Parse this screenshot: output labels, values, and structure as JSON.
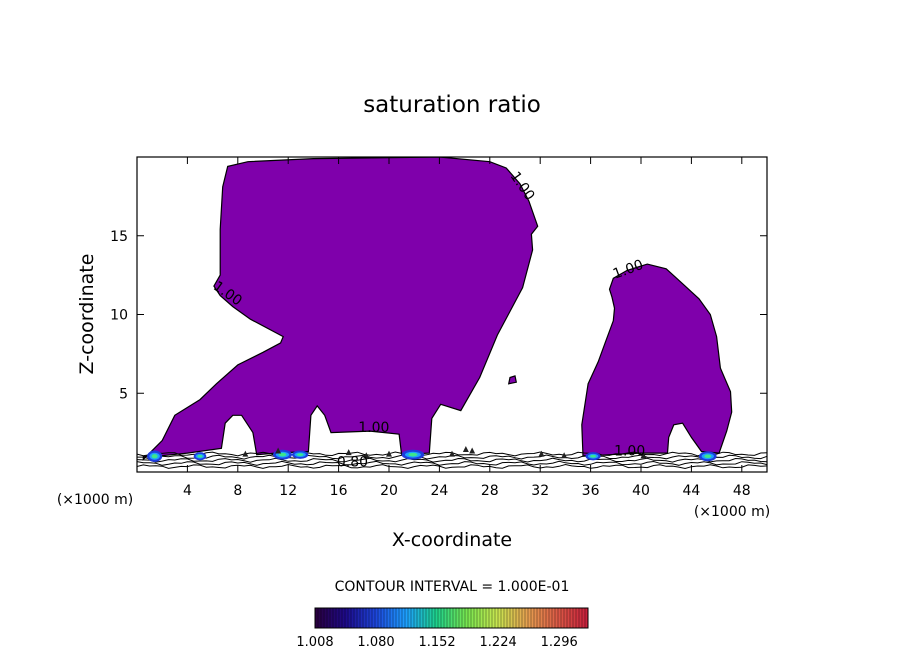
{
  "chart_data": {
    "type": "contour",
    "title": "saturation ratio",
    "xlabel": "X-coordinate",
    "ylabel": "Z-coordinate",
    "x_unit_left": "(×1000 m)",
    "x_unit_right": "(×1000 m)",
    "xlim": [
      0,
      50
    ],
    "ylim": [
      0,
      20
    ],
    "x_ticks": [
      4,
      8,
      12,
      16,
      20,
      24,
      28,
      32,
      36,
      40,
      44,
      48
    ],
    "y_ticks": [
      5,
      10,
      15
    ],
    "fill_color": "#7f00ab",
    "contour_interval_label": "CONTOUR INTERVAL = 1.000E-01",
    "contour_labels": [
      {
        "text": "1.00",
        "x": 30.3,
        "y": 18.0,
        "rotate": 55
      },
      {
        "text": "1.00",
        "x": 7.0,
        "y": 11.1,
        "rotate": 35
      },
      {
        "text": "1.00",
        "x": 39.1,
        "y": 12.6,
        "rotate": -20
      },
      {
        "text": "1.00",
        "x": 18.8,
        "y": 2.55,
        "rotate": 0
      },
      {
        "text": "1.00",
        "x": 39.1,
        "y": 1.05,
        "rotate": 0
      },
      {
        "text": "0.80",
        "x": 17.1,
        "y": 0.35,
        "rotate": 0
      }
    ],
    "colorbar": {
      "min": 1.008,
      "max": 1.33,
      "tick_labels": [
        "1.008",
        "1.080",
        "1.152",
        "1.224",
        "1.296"
      ],
      "colors": [
        "#2a003d",
        "#1e0a8a",
        "#1e46dc",
        "#1ea0ff",
        "#1ed28c",
        "#78e650",
        "#c8e650",
        "#e6a050",
        "#dc5a46",
        "#c81e3c"
      ]
    },
    "regions": {
      "main_cloud": [
        [
          0.5,
          0.8
        ],
        [
          2,
          2
        ],
        [
          3,
          3.6
        ],
        [
          5,
          4.6
        ],
        [
          6.3,
          5.6
        ],
        [
          8,
          6.8
        ],
        [
          10,
          7.6
        ],
        [
          11.4,
          8.2
        ],
        [
          11.6,
          8.6
        ],
        [
          9,
          9.7
        ],
        [
          7.6,
          10.5
        ],
        [
          6.6,
          11.2
        ],
        [
          6.1,
          11.8
        ],
        [
          6.6,
          12.5
        ],
        [
          6.6,
          15.4
        ],
        [
          6.8,
          18.1
        ],
        [
          7.2,
          19.4
        ],
        [
          8.8,
          19.7
        ],
        [
          14,
          19.9
        ],
        [
          24,
          20
        ],
        [
          28,
          19.7
        ],
        [
          29.3,
          19.3
        ],
        [
          30.4,
          18.3
        ],
        [
          31.1,
          17.2
        ],
        [
          31.8,
          15.6
        ],
        [
          31.3,
          15.1
        ],
        [
          31.4,
          14.1
        ],
        [
          30.6,
          11.7
        ],
        [
          28.6,
          8.7
        ],
        [
          27.2,
          6
        ],
        [
          25.7,
          3.9
        ],
        [
          24.1,
          4.3
        ],
        [
          23.4,
          3.4
        ],
        [
          23.2,
          1.2
        ],
        [
          21,
          1.1
        ],
        [
          20.8,
          2.4
        ],
        [
          18.5,
          2.6
        ],
        [
          15.4,
          2.5
        ],
        [
          14.9,
          3.6
        ],
        [
          14.3,
          4.2
        ],
        [
          13.8,
          3.6
        ],
        [
          13.6,
          1.3
        ],
        [
          11,
          1.2
        ],
        [
          9.5,
          1.1
        ],
        [
          9.2,
          2.5
        ],
        [
          8.3,
          3.6
        ],
        [
          7.6,
          3.6
        ],
        [
          7,
          3.1
        ],
        [
          6.7,
          1.5
        ],
        [
          4,
          1.2
        ],
        [
          1.5,
          1
        ],
        [
          0.5,
          1
        ]
      ],
      "right_cloud": [
        [
          35.4,
          1
        ],
        [
          35.3,
          3
        ],
        [
          35.8,
          5.6
        ],
        [
          36.6,
          7
        ],
        [
          37.2,
          8.3
        ],
        [
          37.8,
          9.6
        ],
        [
          37.9,
          10.4
        ],
        [
          37.7,
          11.1
        ],
        [
          37.5,
          11.6
        ],
        [
          37.8,
          12.3
        ],
        [
          38.9,
          12.8
        ],
        [
          40.5,
          13.2
        ],
        [
          42,
          12.9
        ],
        [
          43.1,
          12.1
        ],
        [
          44.6,
          11
        ],
        [
          45.5,
          10
        ],
        [
          46,
          8.6
        ],
        [
          46.3,
          6.6
        ],
        [
          47.1,
          5.1
        ],
        [
          47.2,
          3.8
        ],
        [
          46.8,
          2.6
        ],
        [
          46.2,
          1.2
        ],
        [
          44.8,
          1.3
        ],
        [
          44,
          2.2
        ],
        [
          43.3,
          3.1
        ],
        [
          42.6,
          3
        ],
        [
          42.2,
          2.2
        ],
        [
          42.1,
          1.2
        ],
        [
          40,
          1.2
        ],
        [
          37.5,
          1.1
        ]
      ],
      "speck": [
        [
          29.5,
          5.6
        ],
        [
          30.1,
          5.7
        ],
        [
          30.0,
          6.1
        ],
        [
          29.6,
          6.0
        ]
      ]
    },
    "surface_lines_y": [
      0.35,
      0.55,
      0.75,
      0.95,
      1.15
    ],
    "surface_hotspots": [
      {
        "x": 0.8,
        "y": 1.0,
        "w": 1.2,
        "h": 0.6
      },
      {
        "x": 4.5,
        "y": 1.0,
        "w": 1.0,
        "h": 0.4
      },
      {
        "x": 10.8,
        "y": 1.1,
        "w": 1.5,
        "h": 0.5
      },
      {
        "x": 12.3,
        "y": 1.1,
        "w": 1.3,
        "h": 0.4
      },
      {
        "x": 21.0,
        "y": 1.1,
        "w": 1.8,
        "h": 0.5
      },
      {
        "x": 35.6,
        "y": 1.0,
        "w": 1.2,
        "h": 0.4
      },
      {
        "x": 44.6,
        "y": 1.0,
        "w": 1.4,
        "h": 0.5
      }
    ],
    "ground_specks": [
      {
        "x": 8.6,
        "y": 1.1
      },
      {
        "x": 11.2,
        "y": 1.3
      },
      {
        "x": 16.8,
        "y": 1.2
      },
      {
        "x": 18.2,
        "y": 1.0
      },
      {
        "x": 20.0,
        "y": 1.1
      },
      {
        "x": 25.0,
        "y": 1.1
      },
      {
        "x": 26.1,
        "y": 1.4
      },
      {
        "x": 26.6,
        "y": 1.3
      },
      {
        "x": 32.1,
        "y": 1.1
      },
      {
        "x": 33.9,
        "y": 1.0
      },
      {
        "x": 40.2,
        "y": 1.0
      }
    ]
  }
}
